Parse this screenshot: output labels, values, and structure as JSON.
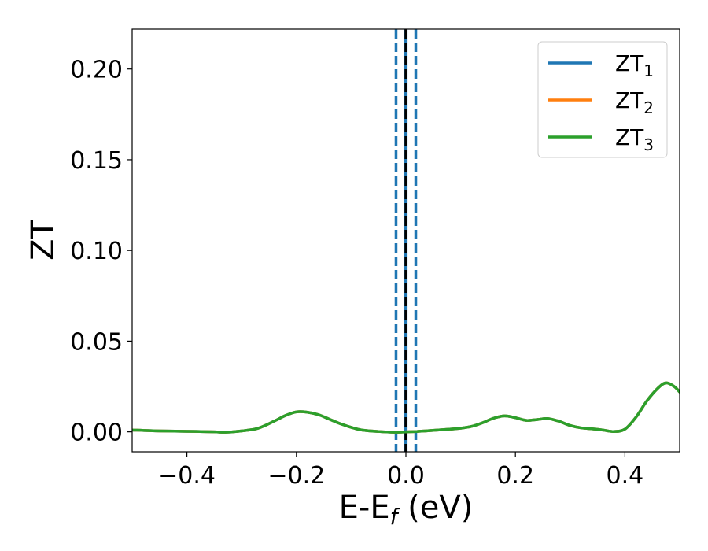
{
  "chart_data": {
    "type": "line",
    "xlabel": "E-E",
    "xlabel_sub": "f",
    "xlabel_unit": " (eV)",
    "ylabel": "ZT",
    "xlim": [
      -0.5,
      0.5
    ],
    "ylim": [
      -0.011,
      0.222
    ],
    "x_ticks": [
      -0.4,
      -0.2,
      0.0,
      0.2,
      0.4
    ],
    "x_tick_labels": [
      "−0.4",
      "−0.2",
      "0.0",
      "0.2",
      "0.4"
    ],
    "y_ticks": [
      0.0,
      0.05,
      0.1,
      0.15,
      0.2
    ],
    "y_tick_labels": [
      "0.00",
      "0.05",
      "0.10",
      "0.15",
      "0.20"
    ],
    "grid": false,
    "legend_position": "top-right",
    "vlines": [
      {
        "x": 0.0,
        "color": "#000000",
        "style": "dashed"
      },
      {
        "x": -0.018,
        "color": "#1f77b4",
        "style": "dashed"
      },
      {
        "x": 0.018,
        "color": "#1f77b4",
        "style": "dashed"
      }
    ],
    "vband": {
      "from": -0.003,
      "to": 0.003,
      "color": "#1f77b4"
    },
    "x": [
      -0.5,
      -0.45,
      -0.4,
      -0.35,
      -0.33,
      -0.3,
      -0.27,
      -0.24,
      -0.22,
      -0.2,
      -0.18,
      -0.16,
      -0.14,
      -0.12,
      -0.1,
      -0.08,
      -0.05,
      -0.02,
      0.0,
      0.02,
      0.05,
      0.08,
      0.1,
      0.12,
      0.14,
      0.16,
      0.18,
      0.2,
      0.22,
      0.24,
      0.26,
      0.28,
      0.3,
      0.32,
      0.34,
      0.36,
      0.38,
      0.4,
      0.42,
      0.44,
      0.46,
      0.475,
      0.49,
      0.5
    ],
    "series": [
      {
        "name": "ZT",
        "sub": "1",
        "color": "#1f77b4",
        "values": [
          0.001,
          0.0005,
          0.0003,
          0.0,
          -0.0002,
          0.0005,
          0.002,
          0.006,
          0.009,
          0.011,
          0.0108,
          0.0095,
          0.007,
          0.0045,
          0.0025,
          0.001,
          0.0002,
          -0.0002,
          0.0,
          0.0002,
          0.0008,
          0.0015,
          0.002,
          0.003,
          0.005,
          0.0075,
          0.0088,
          0.0078,
          0.0063,
          0.0068,
          0.0073,
          0.0058,
          0.0035,
          0.0022,
          0.0017,
          0.001,
          0.0002,
          0.0015,
          0.008,
          0.017,
          0.024,
          0.027,
          0.025,
          0.022
        ]
      },
      {
        "name": "ZT",
        "sub": "2",
        "color": "#ff7f0e",
        "values": [
          0.001,
          0.0005,
          0.0003,
          0.0,
          -0.0002,
          0.0005,
          0.002,
          0.006,
          0.009,
          0.011,
          0.0108,
          0.0095,
          0.007,
          0.0045,
          0.0025,
          0.001,
          0.0002,
          -0.0002,
          0.0,
          0.0002,
          0.0008,
          0.0015,
          0.002,
          0.003,
          0.005,
          0.0075,
          0.0088,
          0.0078,
          0.0063,
          0.0068,
          0.0073,
          0.0058,
          0.0035,
          0.0022,
          0.0017,
          0.001,
          0.0002,
          0.0015,
          0.008,
          0.017,
          0.024,
          0.027,
          0.025,
          0.022
        ]
      },
      {
        "name": "ZT",
        "sub": "3",
        "color": "#2ca02c",
        "values": [
          0.001,
          0.0005,
          0.0003,
          0.0,
          -0.0002,
          0.0005,
          0.002,
          0.006,
          0.009,
          0.011,
          0.0108,
          0.0095,
          0.007,
          0.0045,
          0.0025,
          0.001,
          0.0002,
          -0.0002,
          0.0,
          0.0002,
          0.0008,
          0.0015,
          0.002,
          0.003,
          0.005,
          0.0075,
          0.0088,
          0.0078,
          0.0063,
          0.0068,
          0.0073,
          0.0058,
          0.0035,
          0.0022,
          0.0017,
          0.001,
          0.0002,
          0.0015,
          0.008,
          0.017,
          0.024,
          0.027,
          0.025,
          0.022
        ]
      }
    ]
  }
}
